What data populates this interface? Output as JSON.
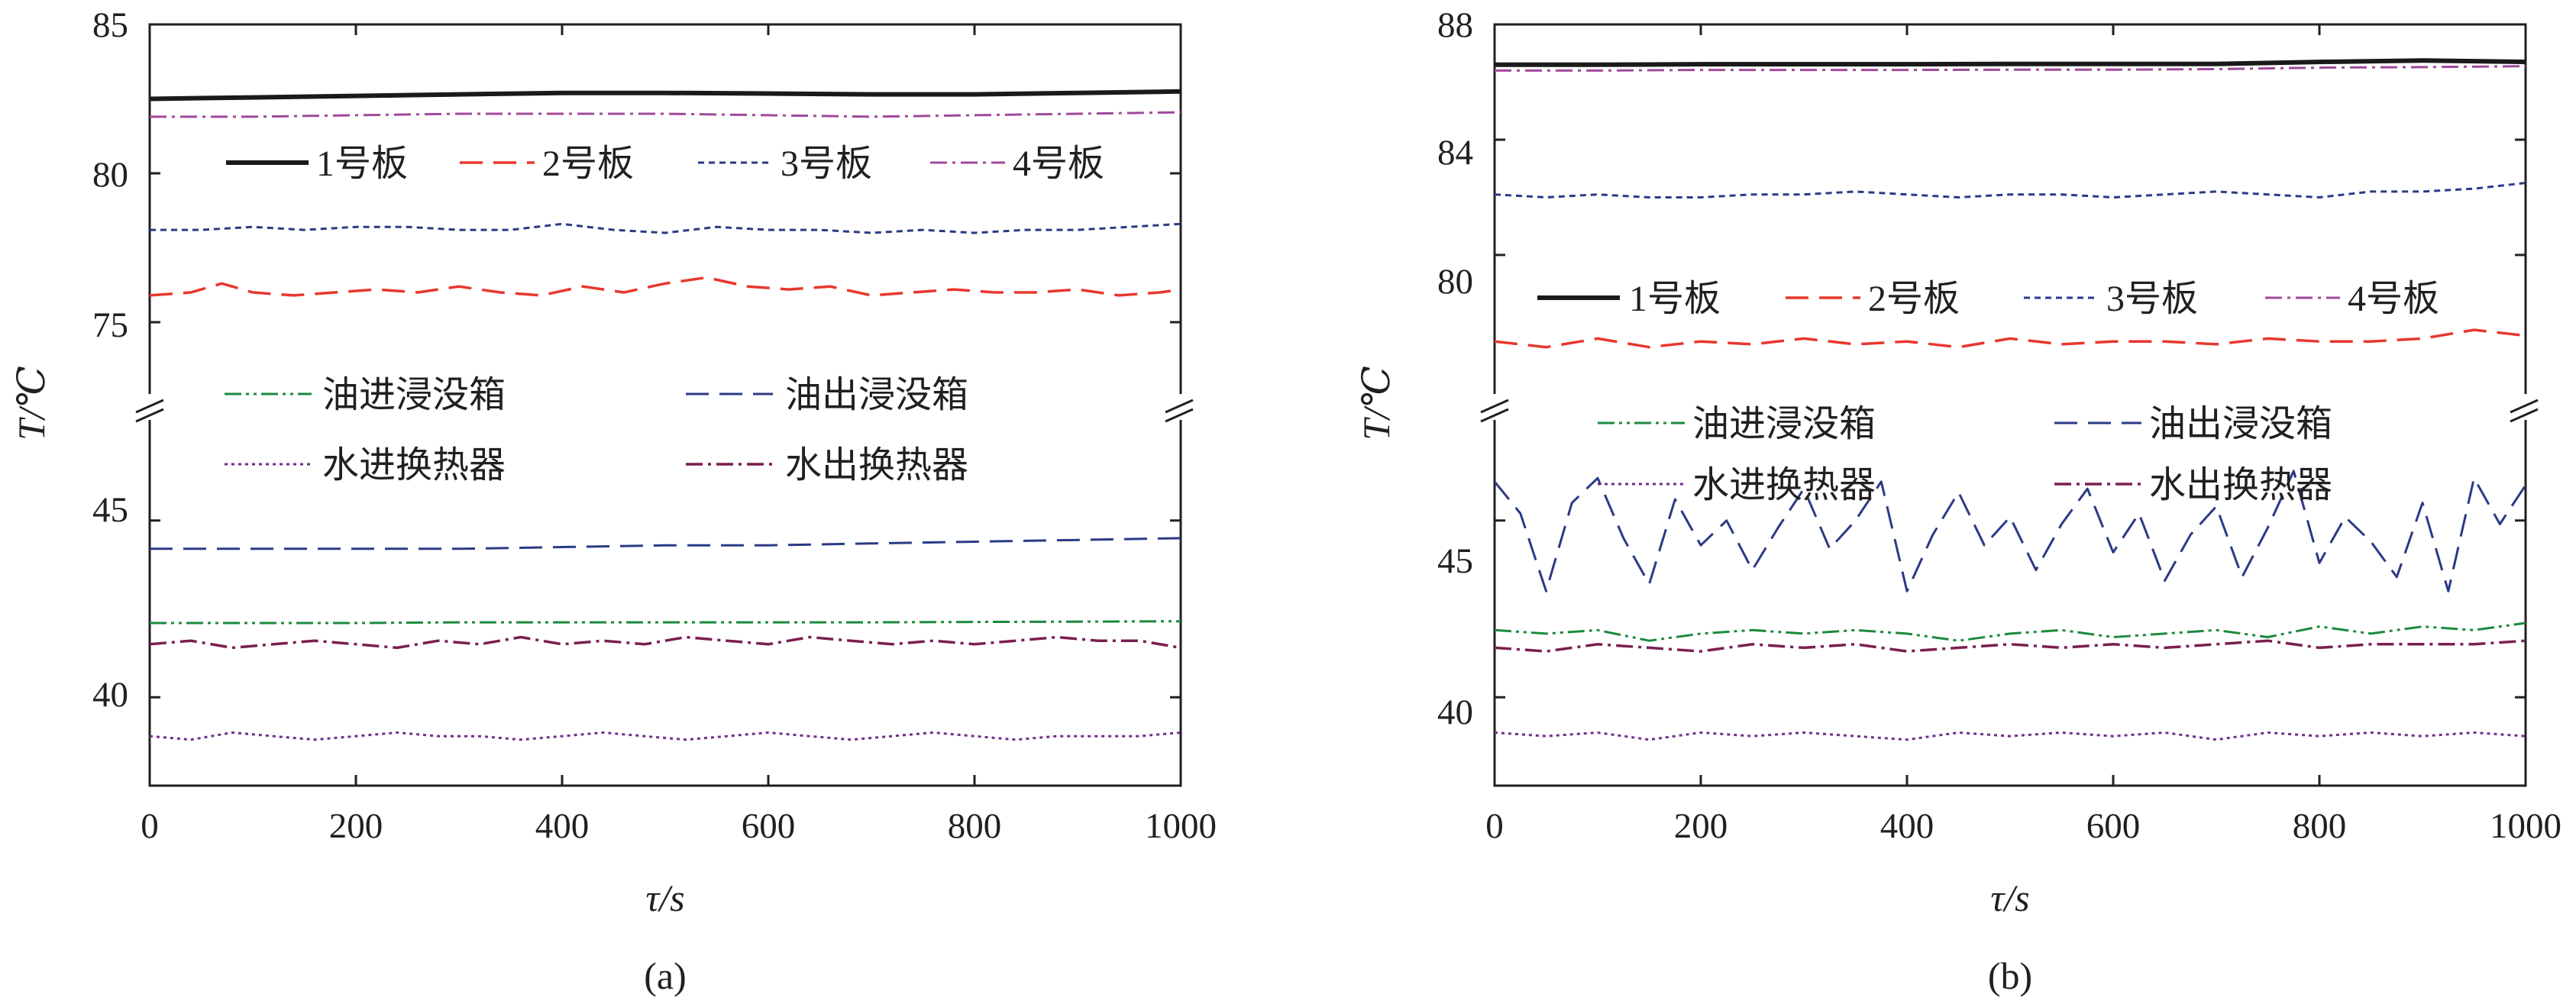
{
  "chart_data": [
    {
      "panel": "(a)",
      "type": "line",
      "xlabel": "τ/s",
      "ylabel": "T/℃",
      "x_ticks": [
        "0",
        "200",
        "400",
        "600",
        "800",
        "1000"
      ],
      "y_ticks_upper": [
        "75",
        "80",
        "85"
      ],
      "y_ticks_lower": [
        "40",
        "45"
      ],
      "xlim": [
        0,
        1000
      ],
      "ylim_upper": [
        73,
        85
      ],
      "ylim_lower": [
        37.5,
        47.5
      ],
      "axis_break": true,
      "legend_upper": {
        "placement": "top",
        "items": [
          "1号板",
          "2号板",
          "3号板",
          "4号板"
        ]
      },
      "legend_lower": {
        "placement": "middle",
        "items": [
          "油进浸没箱",
          "油出浸没箱",
          "水进换热器",
          "水出换热器"
        ]
      },
      "series": [
        {
          "name": "1号板",
          "group": "upper",
          "color": "#1a1a1a",
          "dash": "solid",
          "width": 6,
          "x": [
            0,
            100,
            200,
            300,
            400,
            500,
            600,
            700,
            800,
            900,
            1000
          ],
          "y": [
            82.5,
            82.55,
            82.6,
            82.65,
            82.7,
            82.7,
            82.68,
            82.65,
            82.65,
            82.7,
            82.75
          ]
        },
        {
          "name": "2号板",
          "group": "upper",
          "color": "#e8372f",
          "dash": "longdash",
          "width": 3.5,
          "x": [
            0,
            40,
            70,
            100,
            140,
            180,
            220,
            260,
            300,
            340,
            380,
            420,
            460,
            500,
            540,
            580,
            620,
            660,
            700,
            740,
            780,
            820,
            860,
            900,
            940,
            980,
            1000
          ],
          "y": [
            75.9,
            76.0,
            76.3,
            76.0,
            75.9,
            76.0,
            76.1,
            76.0,
            76.2,
            76.0,
            75.9,
            76.2,
            76.0,
            76.3,
            76.5,
            76.2,
            76.1,
            76.2,
            75.9,
            76.0,
            76.1,
            76.0,
            76.0,
            76.1,
            75.9,
            76.0,
            76.1
          ]
        },
        {
          "name": "3号板",
          "group": "upper",
          "color": "#2b3a85",
          "dash": "shortdash",
          "width": 3,
          "x": [
            0,
            50,
            100,
            150,
            200,
            250,
            300,
            350,
            400,
            450,
            500,
            550,
            600,
            650,
            700,
            750,
            800,
            850,
            900,
            950,
            1000
          ],
          "y": [
            78.1,
            78.1,
            78.2,
            78.1,
            78.2,
            78.2,
            78.1,
            78.1,
            78.3,
            78.1,
            78.0,
            78.2,
            78.1,
            78.1,
            78.0,
            78.1,
            78.0,
            78.1,
            78.1,
            78.2,
            78.3
          ]
        },
        {
          "name": "4号板",
          "group": "upper",
          "color": "#a0499a",
          "dash": "dashdot",
          "width": 3,
          "x": [
            0,
            100,
            200,
            300,
            400,
            500,
            600,
            700,
            800,
            900,
            1000
          ],
          "y": [
            81.9,
            81.9,
            81.95,
            82.0,
            82.0,
            82.0,
            81.95,
            81.9,
            81.95,
            82.0,
            82.05
          ]
        },
        {
          "name": "油进浸没箱",
          "group": "lower",
          "color": "#1b8a3e",
          "dash": "dashdotdot",
          "width": 3,
          "x": [
            0,
            100,
            200,
            300,
            400,
            500,
            600,
            700,
            800,
            900,
            1000
          ],
          "y": [
            42.1,
            42.1,
            42.1,
            42.12,
            42.12,
            42.12,
            42.12,
            42.12,
            42.13,
            42.14,
            42.15
          ]
        },
        {
          "name": "油出浸没箱",
          "group": "lower",
          "color": "#2b3a85",
          "dash": "longdash",
          "width": 3,
          "x": [
            0,
            100,
            200,
            300,
            400,
            500,
            600,
            700,
            800,
            900,
            1000
          ],
          "y": [
            44.2,
            44.2,
            44.2,
            44.2,
            44.25,
            44.3,
            44.3,
            44.35,
            44.4,
            44.45,
            44.5
          ]
        },
        {
          "name": "水进换热器",
          "group": "lower",
          "color": "#6f2e8a",
          "dash": "dotted",
          "width": 3,
          "x": [
            0,
            40,
            80,
            120,
            160,
            200,
            240,
            280,
            320,
            360,
            400,
            440,
            480,
            520,
            560,
            600,
            640,
            680,
            720,
            760,
            800,
            840,
            880,
            920,
            960,
            1000
          ],
          "y": [
            38.9,
            38.8,
            39.0,
            38.9,
            38.8,
            38.9,
            39.0,
            38.9,
            38.9,
            38.8,
            38.9,
            39.0,
            38.9,
            38.8,
            38.9,
            39.0,
            38.9,
            38.8,
            38.9,
            39.0,
            38.9,
            38.8,
            38.9,
            38.9,
            38.9,
            39.0
          ]
        },
        {
          "name": "水出换热器",
          "group": "lower",
          "color": "#7a1f4f",
          "dash": "dashdot",
          "width": 3.5,
          "x": [
            0,
            40,
            80,
            120,
            160,
            200,
            240,
            280,
            320,
            360,
            400,
            440,
            480,
            520,
            560,
            600,
            640,
            680,
            720,
            760,
            800,
            840,
            880,
            920,
            960,
            1000
          ],
          "y": [
            41.5,
            41.6,
            41.4,
            41.5,
            41.6,
            41.5,
            41.4,
            41.6,
            41.5,
            41.7,
            41.5,
            41.6,
            41.5,
            41.7,
            41.6,
            41.5,
            41.7,
            41.6,
            41.5,
            41.6,
            41.5,
            41.6,
            41.7,
            41.6,
            41.6,
            41.4
          ]
        }
      ]
    },
    {
      "panel": "(b)",
      "type": "line",
      "xlabel": "τ/s",
      "ylabel": "T/℃",
      "x_ticks": [
        "0",
        "200",
        "400",
        "600",
        "800",
        "1000"
      ],
      "y_ticks_upper": [
        "80",
        "84",
        "88"
      ],
      "y_ticks_lower": [
        "40",
        "45"
      ],
      "xlim": [
        0,
        1000
      ],
      "ylim_upper": [
        75.6,
        88
      ],
      "ylim_lower": [
        37.5,
        47.5
      ],
      "axis_break": true,
      "legend_upper": {
        "placement": "middle",
        "items": [
          "1号板",
          "2号板",
          "3号板",
          "4号板"
        ]
      },
      "legend_lower": {
        "placement": "middle",
        "items": [
          "油进浸没箱",
          "油出浸没箱",
          "水进换热器",
          "水出换热器"
        ]
      },
      "series": [
        {
          "name": "1号板",
          "group": "upper",
          "color": "#1a1a1a",
          "dash": "solid",
          "width": 6,
          "x": [
            0,
            100,
            200,
            300,
            400,
            500,
            600,
            700,
            800,
            900,
            1000
          ],
          "y": [
            86.6,
            86.6,
            86.62,
            86.62,
            86.62,
            86.63,
            86.63,
            86.63,
            86.7,
            86.75,
            86.7
          ]
        },
        {
          "name": "2号板",
          "group": "upper",
          "color": "#e8372f",
          "dash": "longdash",
          "width": 3.5,
          "x": [
            0,
            50,
            100,
            150,
            200,
            250,
            300,
            350,
            400,
            450,
            500,
            550,
            600,
            650,
            700,
            750,
            800,
            850,
            900,
            950,
            1000
          ],
          "y": [
            77.0,
            76.8,
            77.1,
            76.8,
            77.0,
            76.9,
            77.1,
            76.9,
            77.0,
            76.8,
            77.1,
            76.9,
            77.0,
            77.0,
            76.9,
            77.1,
            77.0,
            77.0,
            77.1,
            77.4,
            77.2
          ]
        },
        {
          "name": "3号板",
          "group": "upper",
          "color": "#2b3a85",
          "dash": "shortdash",
          "width": 3,
          "x": [
            0,
            50,
            100,
            150,
            200,
            250,
            300,
            350,
            400,
            450,
            500,
            550,
            600,
            650,
            700,
            750,
            800,
            850,
            900,
            950,
            1000
          ],
          "y": [
            82.1,
            82.0,
            82.1,
            82.0,
            82.0,
            82.1,
            82.1,
            82.2,
            82.1,
            82.0,
            82.1,
            82.1,
            82.0,
            82.1,
            82.2,
            82.1,
            82.0,
            82.2,
            82.2,
            82.3,
            82.5
          ]
        },
        {
          "name": "4号板",
          "group": "upper",
          "color": "#a0499a",
          "dash": "dashdot",
          "width": 3,
          "x": [
            0,
            100,
            200,
            300,
            400,
            500,
            600,
            700,
            800,
            900,
            1000
          ],
          "y": [
            86.4,
            86.4,
            86.42,
            86.42,
            86.42,
            86.43,
            86.43,
            86.45,
            86.5,
            86.52,
            86.55
          ]
        },
        {
          "name": "油进浸没箱",
          "group": "lower",
          "color": "#1b8a3e",
          "dash": "dashdotdot",
          "width": 3,
          "x": [
            0,
            50,
            100,
            150,
            200,
            250,
            300,
            350,
            400,
            450,
            500,
            550,
            600,
            650,
            700,
            750,
            800,
            850,
            900,
            950,
            1000
          ],
          "y": [
            41.9,
            41.8,
            41.9,
            41.6,
            41.8,
            41.9,
            41.8,
            41.9,
            41.8,
            41.6,
            41.8,
            41.9,
            41.7,
            41.8,
            41.9,
            41.7,
            42.0,
            41.8,
            42.0,
            41.9,
            42.1
          ]
        },
        {
          "name": "油出浸没箱",
          "group": "lower",
          "color": "#2b3a85",
          "dash": "longdash",
          "width": 3,
          "x": [
            0,
            25,
            50,
            75,
            100,
            125,
            150,
            175,
            200,
            225,
            250,
            275,
            300,
            325,
            350,
            375,
            400,
            425,
            450,
            475,
            500,
            525,
            550,
            575,
            600,
            625,
            650,
            675,
            700,
            725,
            750,
            775,
            800,
            825,
            850,
            875,
            900,
            925,
            950,
            975,
            1000
          ],
          "y": [
            46.1,
            45.2,
            43.0,
            45.5,
            46.2,
            44.5,
            43.2,
            45.6,
            44.3,
            45.0,
            43.6,
            44.8,
            45.9,
            44.2,
            45.0,
            46.1,
            43.0,
            44.6,
            45.8,
            44.3,
            45.1,
            43.6,
            44.9,
            45.9,
            44.1,
            45.2,
            43.3,
            44.6,
            45.4,
            43.4,
            44.8,
            46.4,
            43.8,
            45.1,
            44.4,
            43.4,
            45.5,
            43.0,
            46.2,
            44.9,
            46.0
          ]
        },
        {
          "name": "水进换热器",
          "group": "lower",
          "color": "#6f2e8a",
          "dash": "dotted",
          "width": 3,
          "x": [
            0,
            50,
            100,
            150,
            200,
            250,
            300,
            350,
            400,
            450,
            500,
            550,
            600,
            650,
            700,
            750,
            800,
            850,
            900,
            950,
            1000
          ],
          "y": [
            39.0,
            38.9,
            39.0,
            38.8,
            39.0,
            38.9,
            39.0,
            38.9,
            38.8,
            39.0,
            38.9,
            39.0,
            38.9,
            39.0,
            38.8,
            39.0,
            38.9,
            39.0,
            38.9,
            39.0,
            38.9
          ]
        },
        {
          "name": "水出换热器",
          "group": "lower",
          "color": "#7a1f4f",
          "dash": "dashdot",
          "width": 3.5,
          "x": [
            0,
            50,
            100,
            150,
            200,
            250,
            300,
            350,
            400,
            450,
            500,
            550,
            600,
            650,
            700,
            750,
            800,
            850,
            900,
            950,
            1000
          ],
          "y": [
            41.4,
            41.3,
            41.5,
            41.4,
            41.3,
            41.5,
            41.4,
            41.5,
            41.3,
            41.4,
            41.5,
            41.4,
            41.5,
            41.4,
            41.5,
            41.6,
            41.4,
            41.5,
            41.5,
            41.5,
            41.6
          ]
        }
      ]
    }
  ]
}
